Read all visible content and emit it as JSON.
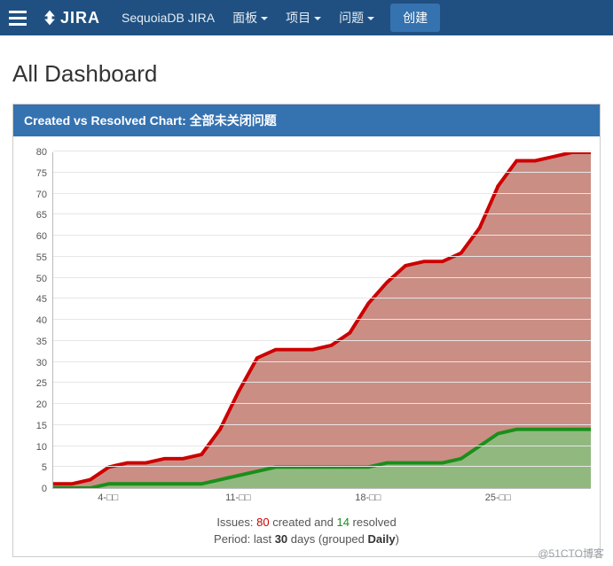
{
  "topbar": {
    "logo_text": "JIRA",
    "product_name": "SequoiaDB JIRA",
    "nav": [
      {
        "label": "面板",
        "dropdown": true
      },
      {
        "label": "项目",
        "dropdown": true
      },
      {
        "label": "问题",
        "dropdown": true
      }
    ],
    "create_label": "创建"
  },
  "page": {
    "title": "All Dashboard"
  },
  "gadget": {
    "header_prefix": "Created vs Resolved Chart: ",
    "header_filter": "全部未关闭问题"
  },
  "chart": {
    "type": "area",
    "background_color": "#ffffff",
    "grid_color": "#e6e6e6",
    "axis_color": "#bbbbbb",
    "tick_fontsize": 11,
    "tick_color": "#555555",
    "y": {
      "min": 0,
      "max": 80,
      "step": 5
    },
    "x_labels": [
      {
        "idx": 3,
        "label": "4-□□"
      },
      {
        "idx": 10,
        "label": "11-□□"
      },
      {
        "idx": 17,
        "label": "18-□□"
      },
      {
        "idx": 24,
        "label": "25-□□"
      }
    ],
    "n_points": 30,
    "series": [
      {
        "name": "created",
        "line_color": "#cc0000",
        "fill_color": "#c17a6e",
        "fill_opacity": 0.85,
        "line_width": 1.5,
        "marker": "circle",
        "marker_size": 2.2,
        "values": [
          1,
          1,
          2,
          5,
          6,
          6,
          7,
          7,
          8,
          14,
          23,
          31,
          33,
          33,
          33,
          34,
          37,
          44,
          49,
          53,
          54,
          54,
          56,
          62,
          72,
          78,
          78,
          79,
          80,
          80
        ]
      },
      {
        "name": "resolved",
        "line_color": "#1a8f1a",
        "fill_color": "#7ec77e",
        "fill_opacity": 0.75,
        "line_width": 1.5,
        "marker": "circle",
        "marker_size": 2.2,
        "values": [
          0,
          0,
          0,
          1,
          1,
          1,
          1,
          1,
          1,
          2,
          3,
          4,
          5,
          5,
          5,
          5,
          5,
          5,
          6,
          6,
          6,
          6,
          7,
          10,
          13,
          14,
          14,
          14,
          14,
          14
        ]
      }
    ]
  },
  "summary": {
    "prefix": "Issues: ",
    "created_count": "80",
    "created_word": " created and ",
    "resolved_count": "14",
    "resolved_word": " resolved"
  },
  "period": {
    "prefix": "Period: last ",
    "days": "30",
    "mid": " days (grouped ",
    "group": "Daily",
    "suffix": ")"
  },
  "watermark": "@51CTO博客"
}
